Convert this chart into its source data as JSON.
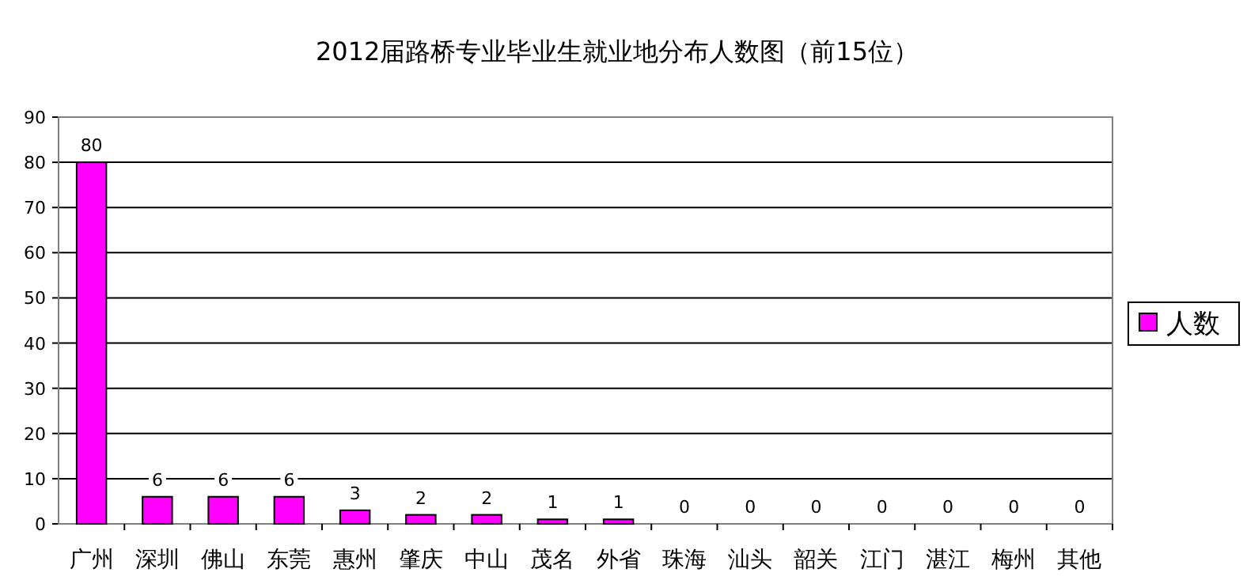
{
  "chart_data": {
    "type": "bar",
    "title": "2012届路桥专业毕业生就业地分布人数图（前15位）",
    "categories": [
      "广州",
      "深圳",
      "佛山",
      "东莞",
      "惠州",
      "肇庆",
      "中山",
      "茂名",
      "外省",
      "珠海",
      "汕头",
      "韶关",
      "江门",
      "湛江",
      "梅州",
      "其他"
    ],
    "series": [
      {
        "name": "人数",
        "color": "#ff00ff",
        "values": [
          80,
          6,
          6,
          6,
          3,
          2,
          2,
          1,
          1,
          0,
          0,
          0,
          0,
          0,
          0,
          0
        ]
      }
    ],
    "ylim": [
      0,
      90
    ],
    "yticks": [
      0,
      10,
      20,
      30,
      40,
      50,
      60,
      70,
      80,
      90
    ],
    "grid": "y",
    "legend": "right",
    "data_labels": true
  }
}
